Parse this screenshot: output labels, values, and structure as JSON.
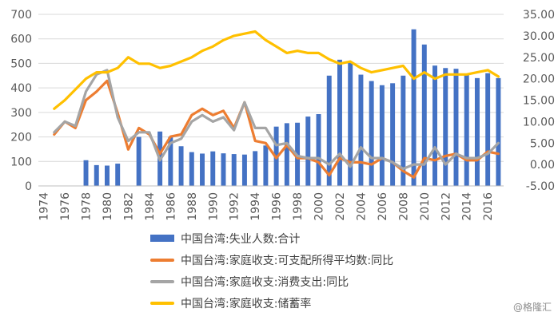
{
  "chart_data": {
    "type": "bar+line",
    "x": [
      1974,
      1975,
      1976,
      1977,
      1978,
      1979,
      1980,
      1981,
      1982,
      1983,
      1984,
      1985,
      1986,
      1987,
      1988,
      1989,
      1990,
      1991,
      1992,
      1993,
      1994,
      1995,
      1996,
      1997,
      1998,
      1999,
      2000,
      2001,
      2002,
      2003,
      2004,
      2005,
      2006,
      2007,
      2008,
      2009,
      2010,
      2011,
      2012,
      2013,
      2014,
      2015,
      2016,
      2017
    ],
    "x_tick_labels": [
      "1974",
      "1976",
      "1978",
      "1980",
      "1982",
      "1984",
      "1986",
      "1988",
      "1990",
      "1992",
      "1994",
      "1996",
      "1998",
      "2000",
      "2002",
      "2004",
      "2006",
      "2008",
      "2010",
      "2012",
      "2014",
      "2016"
    ],
    "y_left": {
      "lim": [
        0,
        700
      ],
      "ticks": [
        "0",
        "100",
        "200",
        "300",
        "400",
        "500",
        "600",
        "700"
      ]
    },
    "y_right": {
      "lim": [
        -5,
        35
      ],
      "ticks": [
        "-5.00",
        "0.00",
        "5.00",
        "10.00",
        "15.00",
        "20.00",
        "25.00",
        "30.00",
        "35.00"
      ]
    },
    "bars": {
      "name": "中国台湾:失业人数:合计",
      "color": "#4472c4",
      "axis": "left",
      "values": [
        null,
        null,
        null,
        null,
        105,
        85,
        83,
        91,
        null,
        200,
        null,
        222,
        200,
        162,
        138,
        132,
        141,
        133,
        130,
        128,
        142,
        165,
        242,
        256,
        258,
        283,
        293,
        450,
        515,
        503,
        454,
        428,
        411,
        419,
        450,
        639,
        577,
        491,
        481,
        478,
        457,
        440,
        460,
        440
      ]
    },
    "lines": [
      {
        "name": "中国台湾:家庭收支:可支配所得平均数:同比",
        "color": "#ed7d31",
        "axis": "right",
        "values": [
          null,
          7.0,
          10.0,
          8.5,
          15.0,
          17.0,
          19.5,
          12.0,
          3.5,
          8.5,
          7.0,
          2.5,
          6.5,
          7.0,
          11.5,
          13.0,
          11.5,
          12.5,
          8.5,
          14.5,
          5.5,
          5.0,
          1.5,
          4.5,
          1.5,
          1.5,
          0.5,
          -2.5,
          1.5,
          0.5,
          0.5,
          0.0,
          1.5,
          0.5,
          -1.5,
          -3.0,
          1.5,
          1.0,
          2.0,
          2.5,
          1.0,
          1.0,
          3.0,
          2.5
        ]
      },
      {
        "name": "中国台湾:家庭收支:消费支出:同比",
        "color": "#a5a5a5",
        "axis": "right",
        "values": [
          null,
          7.5,
          10.0,
          9.0,
          17.0,
          21.0,
          22.0,
          11.0,
          5.5,
          7.5,
          7.5,
          1.0,
          5.0,
          6.0,
          10.0,
          11.5,
          10.0,
          11.0,
          8.0,
          14.5,
          8.5,
          8.5,
          4.5,
          5.0,
          2.0,
          1.5,
          1.5,
          0.0,
          2.5,
          -0.5,
          4.0,
          1.5,
          1.5,
          0.5,
          -1.0,
          0.0,
          0.0,
          4.0,
          0.0,
          2.5,
          1.5,
          1.5,
          2.5,
          5.0
        ]
      },
      {
        "name": "中国台湾:家庭收支:储蓄率",
        "color": "#ffc000",
        "axis": "right",
        "values": [
          null,
          13.0,
          15.0,
          17.5,
          20.0,
          21.5,
          21.5,
          22.5,
          25.0,
          23.5,
          23.5,
          22.5,
          23.0,
          24.0,
          25.0,
          26.5,
          27.5,
          29.0,
          30.0,
          30.5,
          31.0,
          29.0,
          27.5,
          26.0,
          26.5,
          26.0,
          26.0,
          24.5,
          23.5,
          24.0,
          22.5,
          21.5,
          22.0,
          22.5,
          23.0,
          20.0,
          21.5,
          20.0,
          21.0,
          21.0,
          21.0,
          21.5,
          22.0,
          20.5
        ]
      }
    ],
    "grid": true,
    "legend_position": "bottom"
  },
  "watermark": "@格隆汇"
}
